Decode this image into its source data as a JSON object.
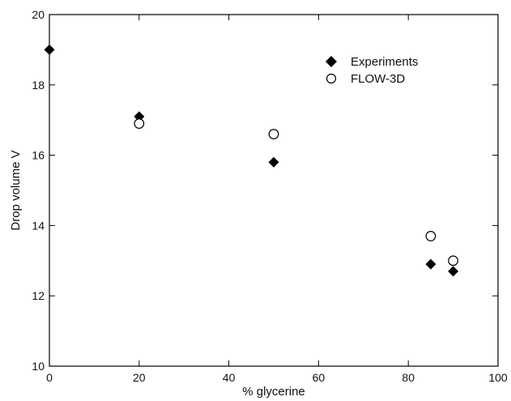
{
  "chart_data": {
    "type": "scatter",
    "title": "",
    "xlabel": "% glycerine",
    "ylabel": "Drop volume V",
    "xlim": [
      0,
      100
    ],
    "ylim": [
      10,
      20
    ],
    "xticks": [
      0,
      20,
      40,
      60,
      80,
      100
    ],
    "yticks": [
      10,
      12,
      14,
      16,
      18,
      20
    ],
    "grid": false,
    "legend_position": "top-right",
    "series": [
      {
        "name": "Experiments",
        "marker": "filled-diamond",
        "color": "#000000",
        "points": [
          {
            "x": 0,
            "y": 19.0
          },
          {
            "x": 20,
            "y": 17.1
          },
          {
            "x": 50,
            "y": 15.8
          },
          {
            "x": 85,
            "y": 12.9
          },
          {
            "x": 90,
            "y": 12.7
          }
        ]
      },
      {
        "name": "FLOW-3D",
        "marker": "open-circle",
        "color": "#000000",
        "points": [
          {
            "x": 20,
            "y": 16.9
          },
          {
            "x": 50,
            "y": 16.6
          },
          {
            "x": 85,
            "y": 13.7
          },
          {
            "x": 90,
            "y": 13.0
          }
        ]
      }
    ]
  }
}
